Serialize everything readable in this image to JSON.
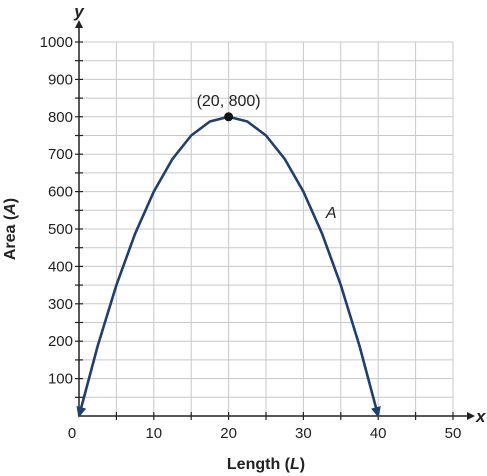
{
  "chart_data": {
    "type": "line",
    "xlabel_parts": [
      "Length (",
      "L",
      ")"
    ],
    "ylabel_parts": [
      "Area (",
      "A",
      ")"
    ],
    "x_axis_letter": "x",
    "y_axis_letter": "y",
    "xlim": [
      0,
      50
    ],
    "ylim": [
      0,
      1000
    ],
    "x_tick_step": 5,
    "y_tick_step": 50,
    "x_tick_labels": [
      {
        "value": 0,
        "label": "0"
      },
      {
        "value": 10,
        "label": "10"
      },
      {
        "value": 20,
        "label": "20"
      },
      {
        "value": 30,
        "label": "30"
      },
      {
        "value": 40,
        "label": "40"
      },
      {
        "value": 50,
        "label": "50"
      }
    ],
    "y_tick_labels": [
      {
        "value": 100,
        "label": "100"
      },
      {
        "value": 200,
        "label": "200"
      },
      {
        "value": 300,
        "label": "300"
      },
      {
        "value": 400,
        "label": "400"
      },
      {
        "value": 500,
        "label": "500"
      },
      {
        "value": 600,
        "label": "600"
      },
      {
        "value": 700,
        "label": "700"
      },
      {
        "value": 800,
        "label": "800"
      },
      {
        "value": 900,
        "label": "900"
      },
      {
        "value": 1000,
        "label": "1000"
      }
    ],
    "grid": true,
    "series": [
      {
        "name": "A",
        "color": "#1f3f6e",
        "x": [
          0,
          2.5,
          5,
          7.5,
          10,
          12.5,
          15,
          17.5,
          20,
          22.5,
          25,
          27.5,
          30,
          32.5,
          35,
          37.5,
          40
        ],
        "y": [
          0,
          187.5,
          350,
          487.5,
          600,
          687.5,
          750,
          787.5,
          800,
          787.5,
          750,
          687.5,
          600,
          487.5,
          350,
          187.5,
          0
        ],
        "label_at": {
          "x": 33,
          "y": 530
        },
        "arrows_at_ends": true
      }
    ],
    "points": [
      {
        "x": 20,
        "y": 800,
        "label": "(20, 800)"
      }
    ]
  }
}
